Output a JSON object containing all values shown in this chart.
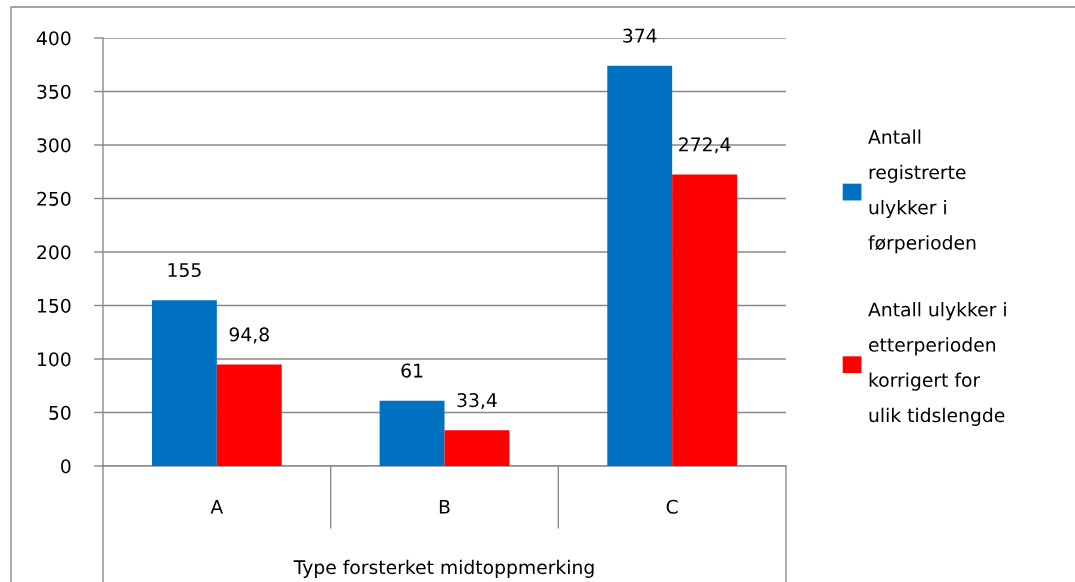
{
  "chart_data": {
    "type": "bar",
    "xlabel": "Type forsterket midtoppmerking",
    "categories": [
      "A",
      "B",
      "C"
    ],
    "series": [
      {
        "name": "Antall registrerte ulykker i førperioden",
        "color": "#0070c0",
        "values": [
          155,
          61,
          374
        ],
        "value_labels": [
          "155",
          "61",
          "374"
        ]
      },
      {
        "name": "Antall ulykker i etterperioden korrigert for ulik tidslengde",
        "color": "#ff0000",
        "values": [
          94.8,
          33.4,
          272.4
        ],
        "value_labels": [
          "94,8",
          "33,4",
          "272,4"
        ]
      }
    ],
    "ylim": [
      0,
      400
    ],
    "yticks": [
      0,
      50,
      100,
      150,
      200,
      250,
      300,
      350,
      400
    ],
    "grid": "y",
    "legend": "right"
  }
}
